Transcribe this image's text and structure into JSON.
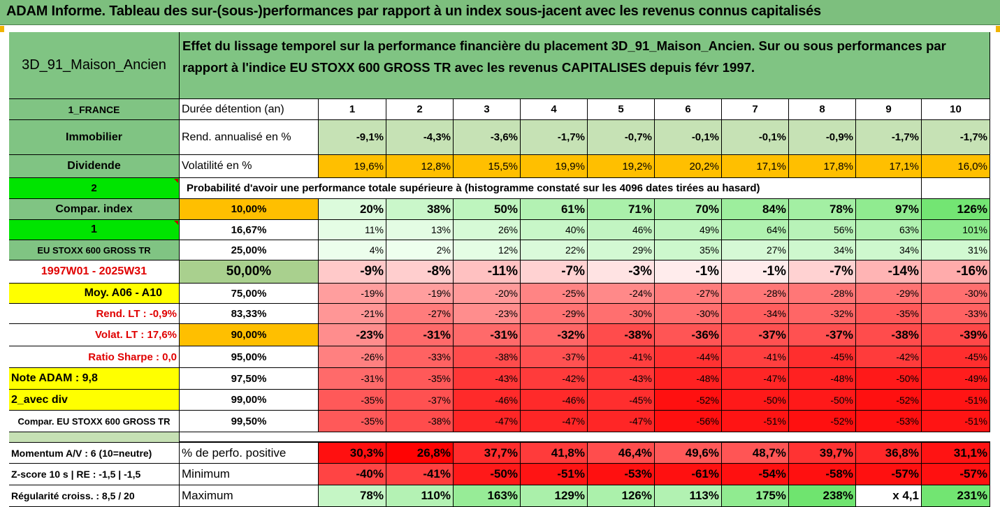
{
  "title": "ADAM Informe. Tableau des sur-(sous-)performances par rapport à un index sous-jacent avec les revenus connus capitalisés",
  "header": {
    "asset_name": "3D_91_Maison_Ancien",
    "description": "Effet du lissage temporel sur la performance financière du placement 3D_91_Maison_Ancien. Sur ou sous performances par rapport à l'indice EU STOXX 600 GROSS TR avec les revenus CAPITALISES depuis févr 1997."
  },
  "left_labels": {
    "country": "1_FRANCE",
    "category": "Immobilier",
    "dividend": "Dividende",
    "two": "2",
    "compar_index": "Compar. index",
    "one": "1",
    "index_name": "EU STOXX 600 GROSS TR",
    "period": "1997W01 - 2025W31",
    "moy": "Moy. A06 - A10",
    "rend_lt": "Rend. LT :   -0,9%",
    "volat_lt": "Volat. LT :   17,6%",
    "sharpe": "Ratio Sharpe :   0,0",
    "note": "Note ADAM : 9,8",
    "avec_div": "2_avec div",
    "compar_full": "Compar. EU STOXX 600 GROSS TR"
  },
  "row_labels": {
    "duree": "Durée détention (an)",
    "rend": "Rend. annualisé en %",
    "volat": "Volatilité en %",
    "proba": "Probabilité d'avoir une performance totale supérieure à (histogramme constaté sur les 4096 dates tirées au hasard)"
  },
  "years": [
    "1",
    "2",
    "3",
    "4",
    "5",
    "6",
    "7",
    "8",
    "9",
    "10"
  ],
  "rend": [
    "-9,1%",
    "-4,3%",
    "-3,6%",
    "-1,7%",
    "-0,7%",
    "-0,1%",
    "-0,1%",
    "-0,9%",
    "-1,7%",
    "-1,7%"
  ],
  "volat": [
    "19,6%",
    "12,8%",
    "15,5%",
    "19,9%",
    "19,2%",
    "20,2%",
    "17,1%",
    "17,8%",
    "17,1%",
    "16,0%"
  ],
  "quantiles": [
    {
      "q": "10,00%",
      "vals": [
        "20%",
        "38%",
        "50%",
        "61%",
        "71%",
        "70%",
        "84%",
        "78%",
        "97%",
        "126%"
      ]
    },
    {
      "q": "16,67%",
      "vals": [
        "11%",
        "13%",
        "26%",
        "40%",
        "46%",
        "49%",
        "64%",
        "56%",
        "63%",
        "101%"
      ]
    },
    {
      "q": "25,00%",
      "vals": [
        "4%",
        "2%",
        "12%",
        "22%",
        "29%",
        "35%",
        "27%",
        "34%",
        "34%",
        "31%"
      ]
    },
    {
      "q": "50,00%",
      "vals": [
        "-9%",
        "-8%",
        "-11%",
        "-7%",
        "-3%",
        "-1%",
        "-1%",
        "-7%",
        "-14%",
        "-16%"
      ]
    },
    {
      "q": "75,00%",
      "vals": [
        "-19%",
        "-19%",
        "-20%",
        "-25%",
        "-24%",
        "-27%",
        "-28%",
        "-28%",
        "-29%",
        "-30%"
      ]
    },
    {
      "q": "83,33%",
      "vals": [
        "-21%",
        "-27%",
        "-23%",
        "-29%",
        "-30%",
        "-30%",
        "-34%",
        "-32%",
        "-35%",
        "-33%"
      ]
    },
    {
      "q": "90,00%",
      "vals": [
        "-23%",
        "-31%",
        "-31%",
        "-32%",
        "-38%",
        "-36%",
        "-37%",
        "-37%",
        "-38%",
        "-39%"
      ]
    },
    {
      "q": "95,00%",
      "vals": [
        "-26%",
        "-33%",
        "-38%",
        "-37%",
        "-41%",
        "-44%",
        "-41%",
        "-45%",
        "-42%",
        "-45%"
      ]
    },
    {
      "q": "97,50%",
      "vals": [
        "-31%",
        "-35%",
        "-43%",
        "-42%",
        "-43%",
        "-48%",
        "-47%",
        "-48%",
        "-50%",
        "-49%"
      ]
    },
    {
      "q": "99,00%",
      "vals": [
        "-35%",
        "-37%",
        "-46%",
        "-46%",
        "-45%",
        "-52%",
        "-50%",
        "-50%",
        "-52%",
        "-51%"
      ]
    },
    {
      "q": "99,50%",
      "vals": [
        "-35%",
        "-38%",
        "-47%",
        "-47%",
        "-47%",
        "-56%",
        "-51%",
        "-52%",
        "-53%",
        "-51%"
      ]
    }
  ],
  "bottom": [
    {
      "left": "Momentum A/V : 6 (10=neutre)",
      "label": "% de perfo. positive",
      "vals": [
        "30,3%",
        "26,8%",
        "37,7%",
        "41,8%",
        "46,4%",
        "49,6%",
        "48,7%",
        "39,7%",
        "36,8%",
        "31,1%"
      ]
    },
    {
      "left": "Z-score 10 s  |  RE : -1,5  |  -1,5",
      "label": "Minimum",
      "vals": [
        "-40%",
        "-41%",
        "-50%",
        "-51%",
        "-53%",
        "-61%",
        "-54%",
        "-58%",
        "-57%",
        "-57%"
      ]
    },
    {
      "left": "Régularité croiss. : 8,5 / 20",
      "label": "Maximum",
      "vals": [
        "78%",
        "110%",
        "163%",
        "129%",
        "126%",
        "113%",
        "175%",
        "238%",
        "x 4,1",
        "231%"
      ]
    }
  ],
  "colors": {
    "title_green": "#7dbf7e",
    "label_green": "#80c483",
    "bright_green": "#00e400",
    "orange": "#ffbf00",
    "yellow": "#ffff00",
    "red_text": "#e00000",
    "red_full": "#ff0000"
  }
}
